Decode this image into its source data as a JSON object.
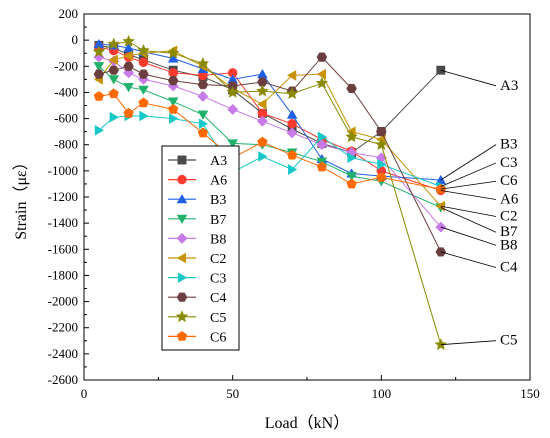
{
  "chart_data": {
    "type": "line",
    "xlabel": "Load（kN）",
    "ylabel": "Strain（με）",
    "xlim": [
      0,
      150
    ],
    "ylim": [
      -2600,
      200
    ],
    "x_ticks": [
      0,
      50,
      100,
      150
    ],
    "x_tick_labels": [
      "0",
      "50",
      "100",
      "150"
    ],
    "y_ticks": [
      200,
      0,
      -200,
      -400,
      -600,
      -800,
      -1000,
      -1200,
      -1400,
      -1600,
      -1800,
      -2000,
      -2200,
      -2400,
      -2600
    ],
    "y_tick_labels": [
      "200",
      "0",
      "-200",
      "-400",
      "-600",
      "-800",
      "-1000",
      "-1200",
      "-1400",
      "-1600",
      "-1800",
      "-2000",
      "-2200",
      "-2400",
      "-2600"
    ],
    "grid": false,
    "legend_position": "left-bottom",
    "series": [
      {
        "name": "A3",
        "color": "#4a4a4a",
        "marker": "square",
        "x": [
          5,
          10,
          15,
          20,
          30,
          40,
          50,
          60,
          70,
          80,
          90,
          100,
          120
        ],
        "y": [
          -40,
          -60,
          -110,
          -150,
          -230,
          -280,
          -380,
          -560,
          -680,
          -790,
          -860,
          -700,
          -230
        ]
      },
      {
        "name": "A6",
        "color": "#ff3b30",
        "marker": "circle",
        "x": [
          5,
          10,
          15,
          20,
          30,
          40,
          50,
          60,
          70,
          80,
          90,
          100,
          120
        ],
        "y": [
          -50,
          -80,
          -130,
          -170,
          -250,
          -270,
          -250,
          -560,
          -640,
          -760,
          -850,
          -1000,
          -1150
        ]
      },
      {
        "name": "B3",
        "color": "#1f5fe6",
        "marker": "triangle-up",
        "x": [
          5,
          10,
          15,
          20,
          30,
          40,
          50,
          60,
          70,
          80,
          90,
          100,
          120
        ],
        "y": [
          -30,
          -40,
          -60,
          -90,
          -140,
          -220,
          -300,
          -260,
          -570,
          -910,
          -1020,
          -1040,
          -1070
        ]
      },
      {
        "name": "B7",
        "color": "#20b26a",
        "marker": "triangle-down",
        "x": [
          5,
          10,
          15,
          20,
          30,
          40,
          50,
          60,
          70,
          80,
          90,
          100,
          120
        ],
        "y": [
          -200,
          -300,
          -360,
          -380,
          -470,
          -570,
          -790,
          -800,
          -860,
          -930,
          -1040,
          -1080,
          -1280
        ]
      },
      {
        "name": "B8",
        "color": "#c77ae8",
        "marker": "diamond",
        "x": [
          5,
          10,
          15,
          20,
          30,
          40,
          50,
          60,
          70,
          80,
          90,
          100,
          120
        ],
        "y": [
          -130,
          -160,
          -250,
          -300,
          -350,
          -430,
          -530,
          -620,
          -710,
          -800,
          -860,
          -900,
          -1430
        ]
      },
      {
        "name": "C2",
        "color": "#c89200",
        "marker": "triangle-left",
        "x": [
          5,
          10,
          15,
          20,
          30,
          40,
          50,
          60,
          70,
          80,
          90,
          100,
          120
        ],
        "y": [
          -300,
          -150,
          -120,
          -100,
          -80,
          -200,
          -370,
          -490,
          -270,
          -260,
          -700,
          -760,
          -1270
        ]
      },
      {
        "name": "C3",
        "color": "#17c8c8",
        "marker": "triangle-right",
        "x": [
          5,
          10,
          15,
          20,
          30,
          40,
          50,
          60,
          70,
          80,
          90,
          100,
          120
        ],
        "y": [
          -690,
          -590,
          -580,
          -580,
          -600,
          -640,
          -1010,
          -890,
          -990,
          -740,
          -900,
          -950,
          -1120
        ]
      },
      {
        "name": "C4",
        "color": "#6b3f3f",
        "marker": "hexagon",
        "x": [
          5,
          10,
          15,
          20,
          30,
          40,
          50,
          60,
          70,
          80,
          90,
          100,
          120
        ],
        "y": [
          -260,
          -230,
          -200,
          -260,
          -310,
          -340,
          -350,
          -320,
          -390,
          -130,
          -370,
          -700,
          -1620
        ]
      },
      {
        "name": "C5",
        "color": "#8a8a00",
        "marker": "star",
        "x": [
          5,
          10,
          15,
          20,
          30,
          40,
          50,
          60,
          70,
          80,
          90,
          100,
          120
        ],
        "y": [
          -90,
          -30,
          -10,
          -80,
          -100,
          -180,
          -400,
          -390,
          -410,
          -330,
          -740,
          -800,
          -2330
        ]
      },
      {
        "name": "C6",
        "color": "#ff6a00",
        "marker": "pentagon",
        "x": [
          5,
          10,
          15,
          20,
          30,
          40,
          50,
          60,
          70,
          80,
          90,
          100,
          120
        ],
        "y": [
          -430,
          -410,
          -560,
          -480,
          -530,
          -710,
          -900,
          -780,
          -880,
          -970,
          -1100,
          -1050,
          -1140
        ]
      }
    ],
    "end_labels": [
      {
        "text": "A3",
        "y": -380
      },
      {
        "text": "B3",
        "y": -830
      },
      {
        "text": "C3",
        "y": -970
      },
      {
        "text": "C6",
        "y": -1110
      },
      {
        "text": "A6",
        "y": -1250
      },
      {
        "text": "C2",
        "y": -1380
      },
      {
        "text": "B7",
        "y": -1500
      },
      {
        "text": "B8",
        "y": -1600
      },
      {
        "text": "C4",
        "y": -1770
      },
      {
        "text": "C5",
        "y": -2330
      }
    ]
  }
}
